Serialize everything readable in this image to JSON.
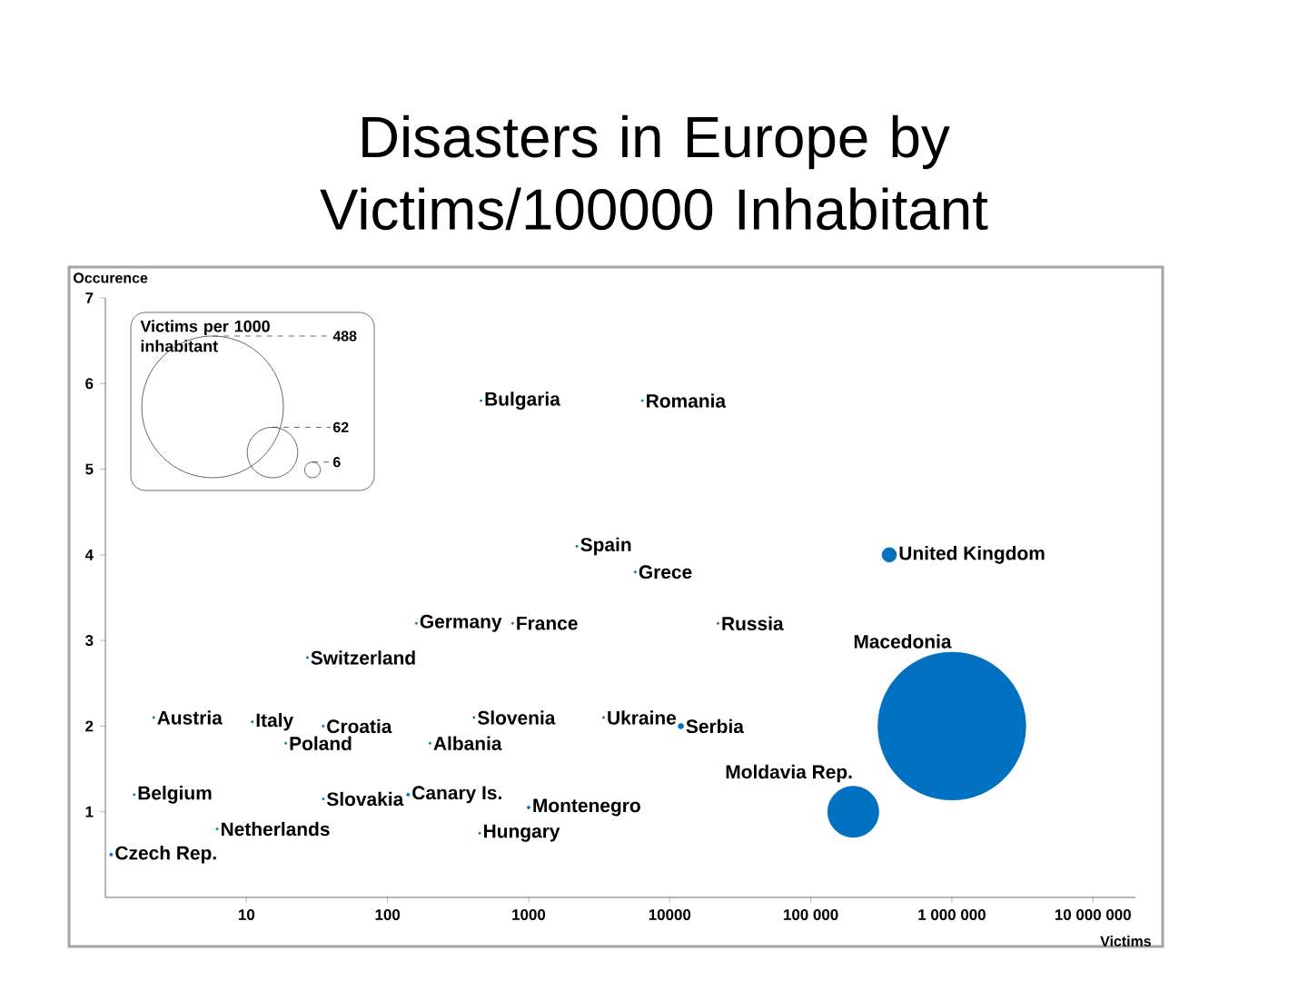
{
  "chart_data": {
    "type": "bubble",
    "title": "Disasters in Europe by Victims/100000 Inhabitant",
    "xlabel": "Victims",
    "ylabel": "Occurence",
    "legend_title": "Victims per 1000 inhabitant",
    "size_legend": [
      6,
      62,
      488
    ],
    "log": "x",
    "marker": "circle",
    "xlim": [
      1,
      20000000
    ],
    "ylim": [
      0,
      7
    ],
    "xticks": [
      10,
      100,
      1000,
      10000,
      {
        "value": 100000,
        "label": "100 000"
      },
      {
        "value": 1000000,
        "label": "1 000 000"
      },
      {
        "value": 10000000,
        "label": "10 000 000"
      }
    ],
    "yticks": [
      1,
      2,
      3,
      4,
      5,
      6,
      7
    ],
    "series": [
      {
        "name": "Bulgaria",
        "color": "#0070c0",
        "x": [
          460
        ],
        "values": [
          5.8
        ],
        "sizes": [
          0.1
        ]
      },
      {
        "name": "Romania",
        "color": "#0070c0",
        "x": [
          6400
        ],
        "values": [
          5.8
        ],
        "sizes": [
          0.1
        ]
      },
      {
        "name": "Spain",
        "color": "#0070c0",
        "x": [
          2200
        ],
        "values": [
          4.1
        ],
        "sizes": [
          0.1
        ]
      },
      {
        "name": "Grece",
        "color": "#0070c0",
        "x": [
          5700
        ],
        "values": [
          3.8
        ],
        "sizes": [
          0.1
        ]
      },
      {
        "name": "United Kingdom",
        "color": "#0070c0",
        "x": [
          360000
        ],
        "values": [
          4.0
        ],
        "sizes": [
          5
        ]
      },
      {
        "name": "Germany",
        "color": "#0070c0",
        "x": [
          160
        ],
        "values": [
          3.2
        ],
        "sizes": [
          0.1
        ]
      },
      {
        "name": "France",
        "color": "#0070c0",
        "x": [
          770
        ],
        "values": [
          3.2
        ],
        "sizes": [
          0.1
        ]
      },
      {
        "name": "Russia",
        "color": "#0070c0",
        "x": [
          22000
        ],
        "values": [
          3.2
        ],
        "sizes": [
          0.1
        ]
      },
      {
        "name": "Switzerland",
        "color": "#0070c0",
        "x": [
          27
        ],
        "values": [
          2.8
        ],
        "sizes": [
          0.1
        ]
      },
      {
        "name": "Macedonia",
        "color": "#0070c0",
        "x": [
          1000000
        ],
        "values": [
          2.0
        ],
        "sizes": [
          530
        ]
      },
      {
        "name": "Austria",
        "color": "#0070c0",
        "x": [
          2.2
        ],
        "values": [
          2.1
        ],
        "sizes": [
          0.1
        ]
      },
      {
        "name": "Italy",
        "color": "#0070c0",
        "x": [
          11
        ],
        "values": [
          2.05
        ],
        "sizes": [
          0.1
        ]
      },
      {
        "name": "Croatia",
        "color": "#0070c0",
        "x": [
          35
        ],
        "values": [
          2.0
        ],
        "sizes": [
          0.1
        ]
      },
      {
        "name": "Poland",
        "color": "#0070c0",
        "x": [
          19
        ],
        "values": [
          1.8
        ],
        "sizes": [
          0.1
        ]
      },
      {
        "name": "Slovenia",
        "color": "#0070c0",
        "x": [
          410
        ],
        "values": [
          2.1
        ],
        "sizes": [
          0.1
        ]
      },
      {
        "name": "Albania",
        "color": "#0070c0",
        "x": [
          200
        ],
        "values": [
          1.8
        ],
        "sizes": [
          0.1
        ]
      },
      {
        "name": "Ukraine",
        "color": "#0070c0",
        "x": [
          3400
        ],
        "values": [
          2.1
        ],
        "sizes": [
          0.1
        ]
      },
      {
        "name": "Serbia",
        "color": "#0070c0",
        "x": [
          12000
        ],
        "values": [
          2.0
        ],
        "sizes": [
          0.7
        ]
      },
      {
        "name": "Belgium",
        "color": "#0070c0",
        "x": [
          1.6
        ],
        "values": [
          1.2
        ],
        "sizes": [
          0.1
        ]
      },
      {
        "name": "Slovakia",
        "color": "#0070c0",
        "x": [
          35
        ],
        "values": [
          1.15
        ],
        "sizes": [
          0.1
        ]
      },
      {
        "name": "Canary Is.",
        "color": "#0070c0",
        "x": [
          140
        ],
        "values": [
          1.2
        ],
        "sizes": [
          0.2
        ]
      },
      {
        "name": "Montenegro",
        "color": "#0070c0",
        "x": [
          1000
        ],
        "values": [
          1.05
        ],
        "sizes": [
          0.2
        ]
      },
      {
        "name": "Netherlands",
        "color": "#0070c0",
        "x": [
          6.2
        ],
        "values": [
          0.8
        ],
        "sizes": [
          0.1
        ]
      },
      {
        "name": "Hungary",
        "color": "#0070c0",
        "x": [
          450
        ],
        "values": [
          0.75
        ],
        "sizes": [
          0.1
        ]
      },
      {
        "name": "Moldavia Rep.",
        "color": "#0070c0",
        "x": [
          200000
        ],
        "values": [
          1.0
        ],
        "sizes": [
          63
        ]
      },
      {
        "name": "Czech Rep.",
        "color": "#0070c0",
        "x": [
          1.1
        ],
        "values": [
          0.5
        ],
        "sizes": [
          0.2
        ]
      }
    ]
  }
}
